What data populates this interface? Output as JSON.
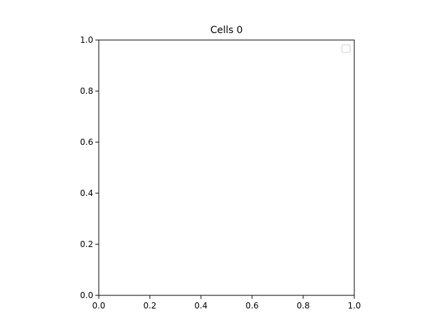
{
  "chart_data": {
    "type": "scatter",
    "title": "Cells 0",
    "xlabel": "",
    "ylabel": "",
    "xlim": [
      0.0,
      1.0
    ],
    "ylim": [
      0.0,
      1.0
    ],
    "x_ticks": [
      "0.0",
      "0.2",
      "0.4",
      "0.6",
      "0.8",
      "1.0"
    ],
    "y_ticks": [
      "0.0",
      "0.2",
      "0.4",
      "0.6",
      "0.8",
      "1.0"
    ],
    "grid": false,
    "legend_placement": "top-right",
    "legend_entries": [],
    "series": []
  }
}
